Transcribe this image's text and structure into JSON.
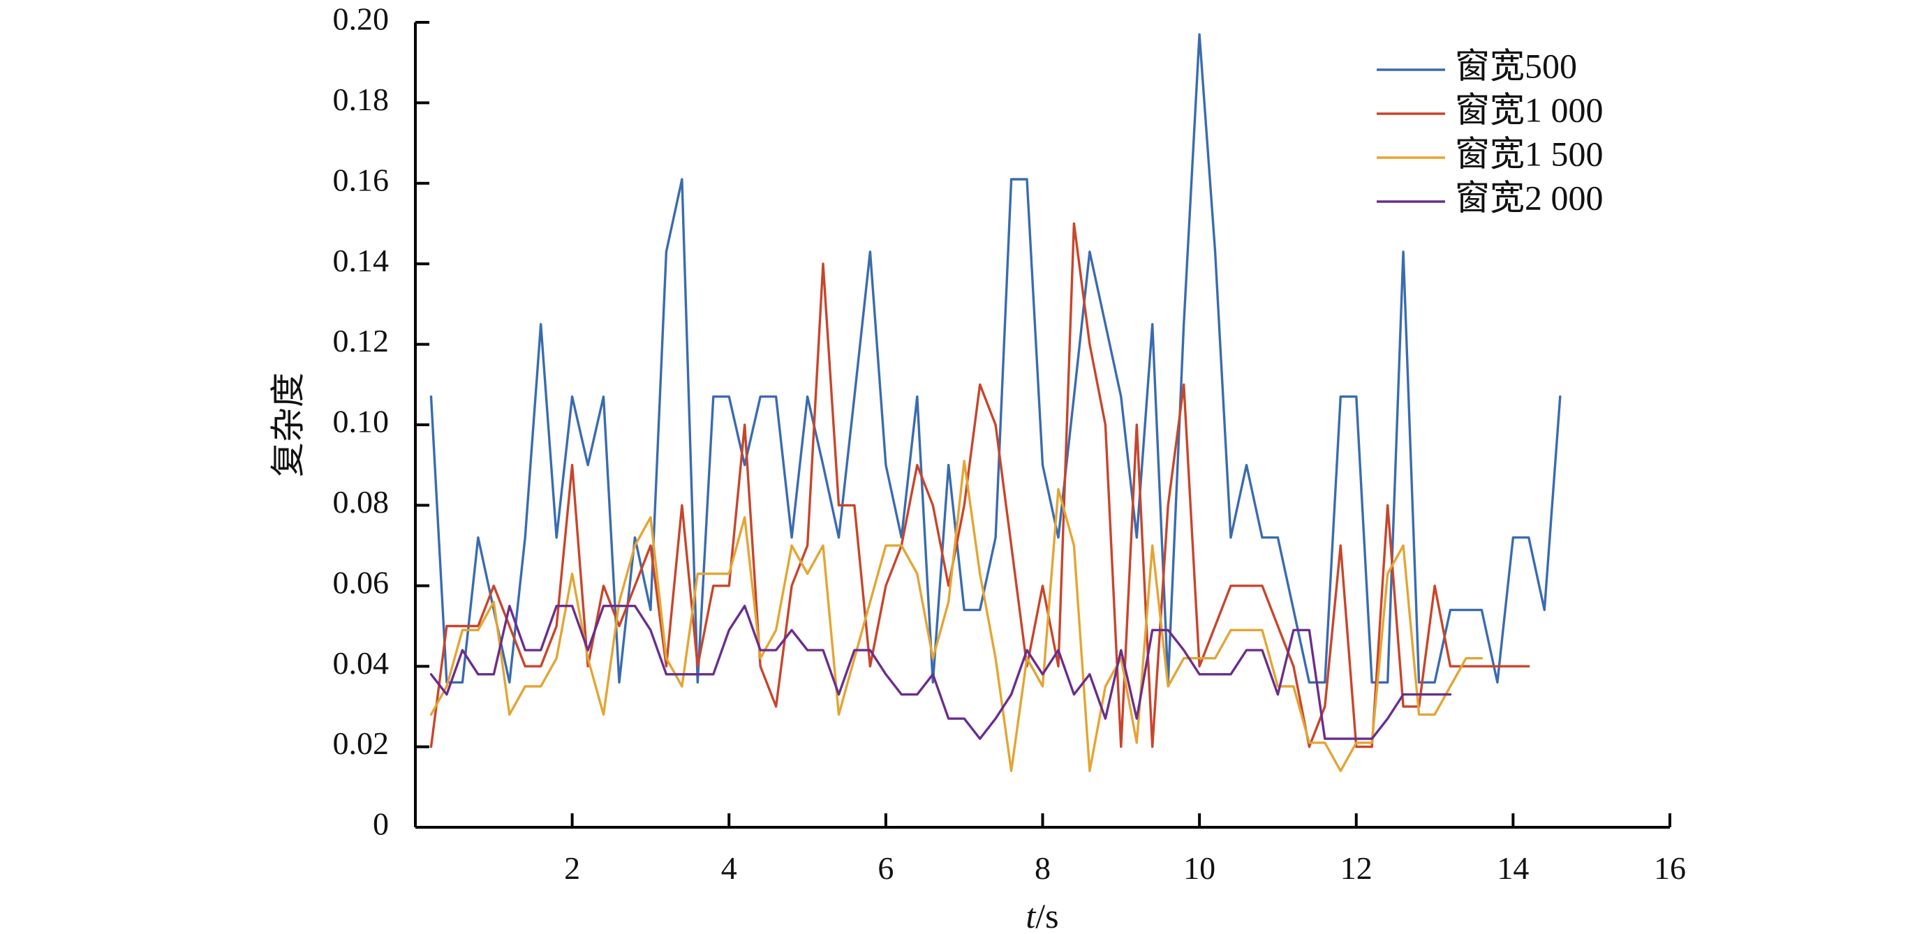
{
  "chart_data": {
    "type": "line",
    "title": "",
    "xlabel_italic": "t",
    "xlabel_unit": "/s",
    "ylabel": "复杂度",
    "xlim": [
      0,
      16
    ],
    "ylim": [
      0,
      0.2
    ],
    "xticks": [
      2,
      4,
      6,
      8,
      10,
      12,
      14,
      16
    ],
    "xtick_labels": [
      "2",
      "4",
      "6",
      "8",
      "10",
      "12",
      "14",
      "16"
    ],
    "yticks": [
      0,
      0.02,
      0.04,
      0.06,
      0.08,
      0.1,
      0.12,
      0.14,
      0.16,
      0.18,
      0.2
    ],
    "ytick_labels": [
      "0",
      "0.02",
      "0.04",
      "0.06",
      "0.08",
      "0.10",
      "0.12",
      "0.14",
      "0.16",
      "0.18",
      "0.20"
    ],
    "grid": false,
    "legend_position": "top-right",
    "series": [
      {
        "name": "窗宽500",
        "color": "#3a6bb0",
        "x": [
          0.2,
          0.4,
          0.6,
          0.8,
          1.0,
          1.2,
          1.4,
          1.6,
          1.8,
          2.0,
          2.2,
          2.4,
          2.6,
          2.8,
          3.0,
          3.2,
          3.4,
          3.6,
          3.8,
          4.0,
          4.2,
          4.4,
          4.6,
          4.8,
          5.0,
          5.2,
          5.4,
          5.6,
          5.8,
          6.0,
          6.2,
          6.4,
          6.6,
          6.8,
          7.0,
          7.2,
          7.4,
          7.6,
          7.8,
          8.0,
          8.2,
          8.4,
          8.6,
          8.8,
          9.0,
          9.2,
          9.4,
          9.6,
          9.8,
          10.0,
          10.2,
          10.4,
          10.6,
          10.8,
          11.0,
          11.2,
          11.4,
          11.6,
          11.8,
          12.0,
          12.2,
          12.4,
          12.6,
          12.8,
          13.0,
          13.2,
          13.4,
          13.6,
          13.8,
          14.0,
          14.2,
          14.4,
          14.6
        ],
        "y": [
          0.107,
          0.036,
          0.036,
          0.072,
          0.054,
          0.036,
          0.072,
          0.125,
          0.072,
          0.107,
          0.09,
          0.107,
          0.036,
          0.072,
          0.054,
          0.143,
          0.161,
          0.036,
          0.107,
          0.107,
          0.09,
          0.107,
          0.107,
          0.072,
          0.107,
          0.09,
          0.072,
          0.107,
          0.143,
          0.09,
          0.072,
          0.107,
          0.036,
          0.09,
          0.054,
          0.054,
          0.072,
          0.161,
          0.161,
          0.09,
          0.072,
          0.107,
          0.143,
          0.125,
          0.107,
          0.072,
          0.125,
          0.036,
          0.125,
          0.197,
          0.143,
          0.072,
          0.09,
          0.072,
          0.072,
          0.054,
          0.036,
          0.036,
          0.107,
          0.107,
          0.036,
          0.036,
          0.143,
          0.036,
          0.036,
          0.054,
          0.054,
          0.054,
          0.036,
          0.072,
          0.072,
          0.054,
          0.107
        ]
      },
      {
        "name": "窗宽1 000",
        "color": "#c8452b",
        "x": [
          0.2,
          0.4,
          0.6,
          0.8,
          1.0,
          1.2,
          1.4,
          1.6,
          1.8,
          2.0,
          2.2,
          2.4,
          2.6,
          2.8,
          3.0,
          3.2,
          3.4,
          3.6,
          3.8,
          4.0,
          4.2,
          4.4,
          4.6,
          4.8,
          5.0,
          5.2,
          5.4,
          5.6,
          5.8,
          6.0,
          6.2,
          6.4,
          6.6,
          6.8,
          7.0,
          7.2,
          7.4,
          7.6,
          7.8,
          8.0,
          8.2,
          8.4,
          8.6,
          8.8,
          9.0,
          9.2,
          9.4,
          9.6,
          9.8,
          10.0,
          10.2,
          10.4,
          10.6,
          10.8,
          11.0,
          11.2,
          11.4,
          11.6,
          11.8,
          12.0,
          12.2,
          12.4,
          12.6,
          12.8,
          13.0,
          13.2,
          13.4,
          13.6,
          13.8,
          14.0,
          14.2
        ],
        "y": [
          0.02,
          0.05,
          0.05,
          0.05,
          0.06,
          0.05,
          0.04,
          0.04,
          0.05,
          0.09,
          0.04,
          0.06,
          0.05,
          0.06,
          0.07,
          0.04,
          0.08,
          0.04,
          0.06,
          0.06,
          0.1,
          0.04,
          0.03,
          0.06,
          0.07,
          0.14,
          0.08,
          0.08,
          0.04,
          0.06,
          0.07,
          0.09,
          0.08,
          0.06,
          0.08,
          0.11,
          0.1,
          0.07,
          0.04,
          0.06,
          0.04,
          0.15,
          0.12,
          0.1,
          0.02,
          0.1,
          0.02,
          0.08,
          0.11,
          0.04,
          0.05,
          0.06,
          0.06,
          0.06,
          0.05,
          0.04,
          0.02,
          0.03,
          0.07,
          0.02,
          0.02,
          0.08,
          0.03,
          0.03,
          0.06,
          0.04,
          0.04,
          0.04,
          0.04,
          0.04,
          0.04
        ]
      },
      {
        "name": "窗宽1 500",
        "color": "#e3a533",
        "x": [
          0.2,
          0.4,
          0.6,
          0.8,
          1.0,
          1.2,
          1.4,
          1.6,
          1.8,
          2.0,
          2.2,
          2.4,
          2.6,
          2.8,
          3.0,
          3.2,
          3.4,
          3.6,
          3.8,
          4.0,
          4.2,
          4.4,
          4.6,
          4.8,
          5.0,
          5.2,
          5.4,
          5.6,
          5.8,
          6.0,
          6.2,
          6.4,
          6.6,
          6.8,
          7.0,
          7.2,
          7.4,
          7.6,
          7.8,
          8.0,
          8.2,
          8.4,
          8.6,
          8.8,
          9.0,
          9.2,
          9.4,
          9.6,
          9.8,
          10.0,
          10.2,
          10.4,
          10.6,
          10.8,
          11.0,
          11.2,
          11.4,
          11.6,
          11.8,
          12.0,
          12.2,
          12.4,
          12.6,
          12.8,
          13.0,
          13.2,
          13.4,
          13.6
        ],
        "y": [
          0.028,
          0.035,
          0.049,
          0.049,
          0.056,
          0.028,
          0.035,
          0.035,
          0.042,
          0.063,
          0.042,
          0.028,
          0.056,
          0.07,
          0.077,
          0.042,
          0.035,
          0.063,
          0.063,
          0.063,
          0.077,
          0.042,
          0.049,
          0.07,
          0.063,
          0.07,
          0.028,
          0.042,
          0.056,
          0.07,
          0.07,
          0.063,
          0.042,
          0.056,
          0.091,
          0.063,
          0.042,
          0.014,
          0.042,
          0.035,
          0.084,
          0.07,
          0.014,
          0.035,
          0.042,
          0.021,
          0.07,
          0.035,
          0.042,
          0.042,
          0.042,
          0.049,
          0.049,
          0.049,
          0.035,
          0.035,
          0.021,
          0.021,
          0.014,
          0.021,
          0.021,
          0.063,
          0.07,
          0.028,
          0.028,
          0.035,
          0.042,
          0.042
        ]
      },
      {
        "name": "窗宽2 000",
        "color": "#6a2e8c",
        "x": [
          0.2,
          0.4,
          0.6,
          0.8,
          1.0,
          1.2,
          1.4,
          1.6,
          1.8,
          2.0,
          2.2,
          2.4,
          2.6,
          2.8,
          3.0,
          3.2,
          3.4,
          3.6,
          3.8,
          4.0,
          4.2,
          4.4,
          4.6,
          4.8,
          5.0,
          5.2,
          5.4,
          5.6,
          5.8,
          6.0,
          6.2,
          6.4,
          6.6,
          6.8,
          7.0,
          7.2,
          7.4,
          7.6,
          7.8,
          8.0,
          8.2,
          8.4,
          8.6,
          8.8,
          9.0,
          9.2,
          9.4,
          9.6,
          9.8,
          10.0,
          10.2,
          10.4,
          10.6,
          10.8,
          11.0,
          11.2,
          11.4,
          11.6,
          11.8,
          12.0,
          12.2,
          12.4,
          12.6,
          12.8,
          13.0,
          13.2
        ],
        "y": [
          0.038,
          0.033,
          0.044,
          0.038,
          0.038,
          0.055,
          0.044,
          0.044,
          0.055,
          0.055,
          0.044,
          0.055,
          0.055,
          0.055,
          0.049,
          0.038,
          0.038,
          0.038,
          0.038,
          0.049,
          0.055,
          0.044,
          0.044,
          0.049,
          0.044,
          0.044,
          0.033,
          0.044,
          0.044,
          0.038,
          0.033,
          0.033,
          0.038,
          0.027,
          0.027,
          0.022,
          0.027,
          0.033,
          0.044,
          0.038,
          0.044,
          0.033,
          0.038,
          0.027,
          0.044,
          0.027,
          0.049,
          0.049,
          0.044,
          0.038,
          0.038,
          0.038,
          0.044,
          0.044,
          0.033,
          0.049,
          0.049,
          0.022,
          0.022,
          0.022,
          0.022,
          0.027,
          0.033,
          0.033,
          0.033,
          0.033
        ]
      }
    ]
  }
}
